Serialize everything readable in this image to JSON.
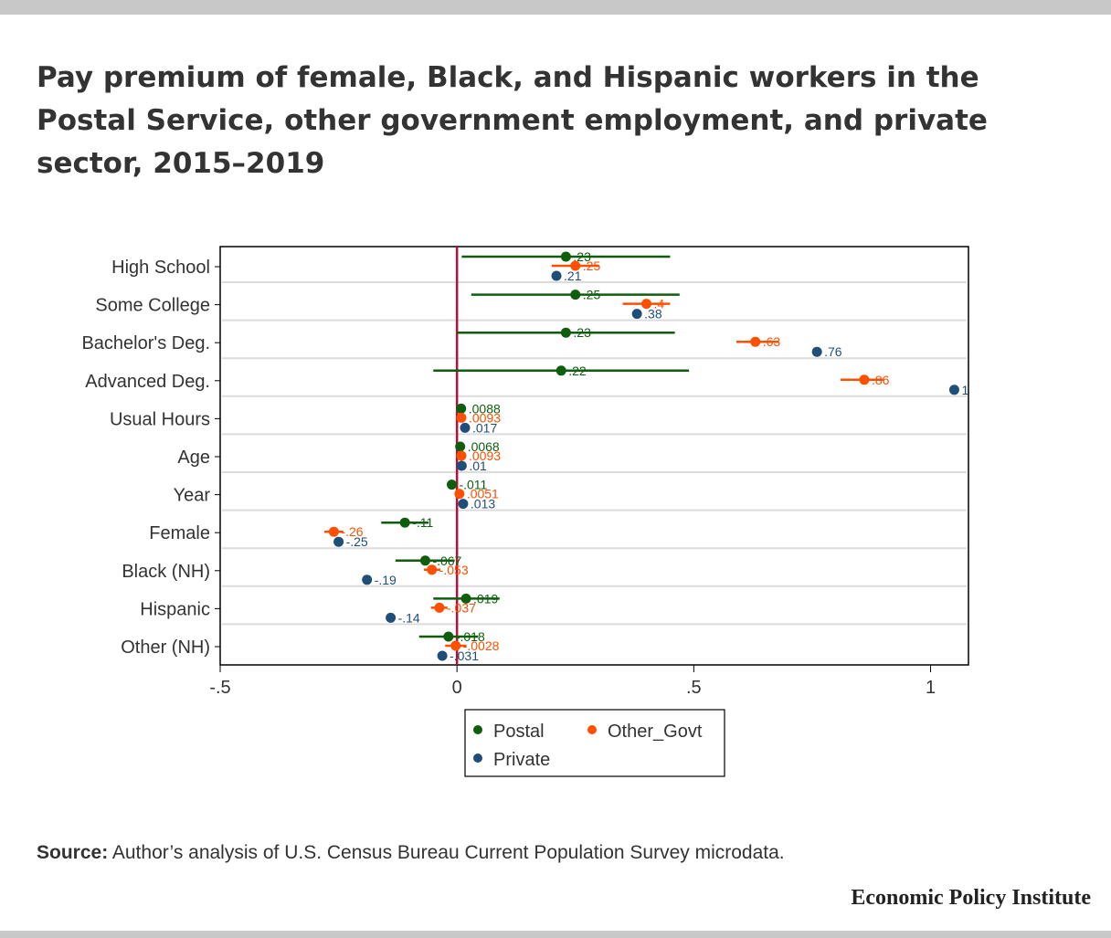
{
  "title": "Pay premium of female, Black, and Hispanic workers in the Postal Service, other government employment, and private sector, 2015–2019",
  "source_label": "Source:",
  "source_text": "Author’s analysis of U.S. Census Bureau Current Population Survey microdata.",
  "brand": "Economic Policy Institute",
  "colors": {
    "Postal": "#0e5e0e",
    "Other_Govt": "#ff4f00",
    "Private": "#1f4e79",
    "zero_line": "#b5123a"
  },
  "chart_data": {
    "type": "scatter",
    "subtype": "coefficient-plot",
    "title": "",
    "xlabel": "",
    "ylabel": "",
    "xlim": [
      -0.5,
      1.08
    ],
    "x_ticks": [
      -0.5,
      0,
      0.5,
      1
    ],
    "x_tick_labels": [
      "-.5",
      "0",
      ".5",
      "1"
    ],
    "reference_line_x": 0,
    "legend_position": "bottom",
    "categories": [
      "High School",
      "Some College",
      "Bachelor's Deg.",
      "Advanced Deg.",
      "Usual Hours",
      "Age",
      "Year",
      "Female",
      "Black (NH)",
      "Hispanic",
      "Other (NH)"
    ],
    "series": [
      {
        "name": "Postal",
        "values": [
          0.23,
          0.25,
          0.23,
          0.22,
          0.0088,
          0.0068,
          -0.011,
          -0.11,
          -0.067,
          0.019,
          -0.018
        ],
        "labels": [
          ".23",
          ".25",
          ".23",
          ".22",
          ".0088",
          ".0068",
          "-.011",
          "-.11",
          "-.067",
          ".019",
          "-.018"
        ],
        "ci": [
          [
            0.01,
            0.45
          ],
          [
            0.03,
            0.47
          ],
          [
            0.0,
            0.46
          ],
          [
            -0.05,
            0.49
          ],
          [
            0.005,
            0.013
          ],
          [
            0.003,
            0.01
          ],
          [
            -0.02,
            -0.002
          ],
          [
            -0.16,
            -0.06
          ],
          [
            -0.13,
            -0.005
          ],
          [
            -0.05,
            0.09
          ],
          [
            -0.08,
            0.045
          ]
        ]
      },
      {
        "name": "Other_Govt",
        "values": [
          0.25,
          0.4,
          0.63,
          0.86,
          0.0093,
          0.0093,
          0.0051,
          -0.26,
          -0.053,
          -0.037,
          -0.0028
        ],
        "labels": [
          ".25",
          ".4",
          ".63",
          ".86",
          ".0093",
          ".0093",
          ".0051",
          "-.26",
          "-.053",
          "-.037",
          "-.0028"
        ],
        "ci": [
          [
            0.2,
            0.3
          ],
          [
            0.35,
            0.45
          ],
          [
            0.59,
            0.68
          ],
          [
            0.81,
            0.9
          ],
          [
            0.007,
            0.012
          ],
          [
            0.007,
            0.012
          ],
          [
            0.003,
            0.007
          ],
          [
            -0.28,
            -0.24
          ],
          [
            -0.07,
            -0.035
          ],
          [
            -0.055,
            -0.02
          ],
          [
            -0.025,
            0.02
          ]
        ]
      },
      {
        "name": "Private",
        "values": [
          0.21,
          0.38,
          0.76,
          1.05,
          0.017,
          0.01,
          0.013,
          -0.25,
          -0.19,
          -0.14,
          -0.031
        ],
        "labels": [
          ".21",
          ".38",
          ".76",
          "1",
          ".017",
          ".01",
          ".013",
          "-.25",
          "-.19",
          "-.14",
          "-.031"
        ],
        "ci": [
          [
            0.205,
            0.215
          ],
          [
            0.375,
            0.385
          ],
          [
            0.755,
            0.765
          ],
          [
            1.045,
            1.055
          ],
          [
            0.016,
            0.018
          ],
          [
            0.009,
            0.011
          ],
          [
            0.012,
            0.014
          ],
          [
            -0.255,
            -0.245
          ],
          [
            -0.195,
            -0.185
          ],
          [
            -0.145,
            -0.135
          ],
          [
            -0.036,
            -0.026
          ]
        ]
      }
    ]
  }
}
